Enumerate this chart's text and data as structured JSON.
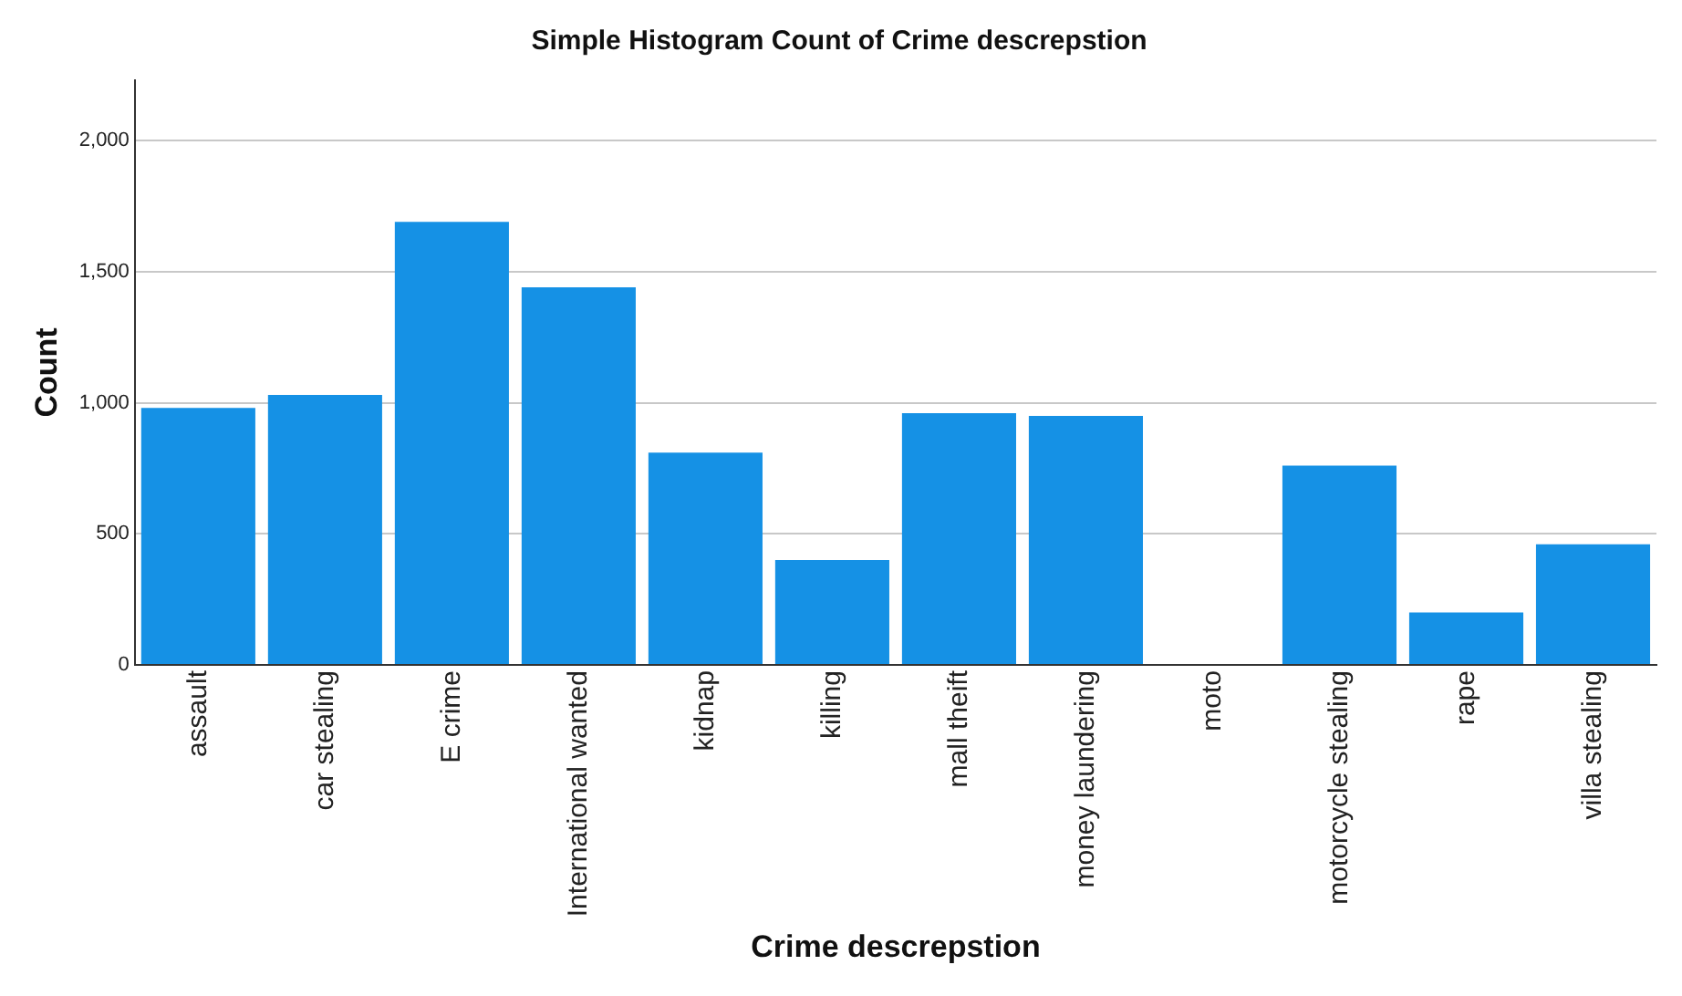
{
  "chart_data": {
    "type": "bar",
    "title": "Simple Histogram Count of Crime descrepstion",
    "xlabel": "Crime descrepstion",
    "ylabel": "Count",
    "categories": [
      "assault",
      "car stealing",
      "E crime",
      "International wanted",
      "kidnap",
      "killing",
      "mall theift",
      "money laundering",
      "moto",
      "motorcycle stealing",
      "rape",
      "villa stealing"
    ],
    "values": [
      980,
      1030,
      1690,
      1440,
      810,
      400,
      960,
      950,
      0,
      760,
      200,
      460
    ],
    "color": "#1591e5",
    "ylim": [
      0,
      2230
    ],
    "yticks": [
      0,
      {
        "value": 500,
        "label": "500"
      },
      {
        "value": 1000,
        "label": "1,000"
      },
      {
        "value": 1500,
        "label": "1,500"
      },
      {
        "value": 2000,
        "label": "2,000"
      }
    ],
    "grid": "y",
    "legend": false
  }
}
